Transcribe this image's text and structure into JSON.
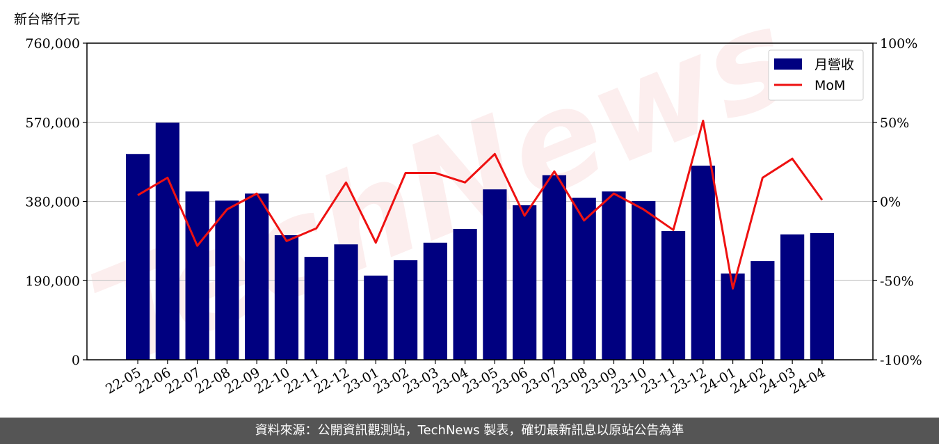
{
  "chart_data": {
    "type": "bar",
    "ylabel": "新台幣仟元",
    "watermark": "TechNews",
    "categories": [
      "22-05",
      "22-06",
      "22-07",
      "22-08",
      "22-09",
      "22-10",
      "22-11",
      "22-12",
      "23-01",
      "23-02",
      "23-03",
      "23-04",
      "23-05",
      "23-06",
      "23-07",
      "23-08",
      "23-09",
      "23-10",
      "23-11",
      "23-12",
      "24-01",
      "24-02",
      "24-03",
      "24-04"
    ],
    "series": [
      {
        "name": "月營收",
        "type": "bar",
        "color": "#000080",
        "values": [
          494000,
          569000,
          404000,
          382000,
          399000,
          299000,
          247000,
          277000,
          202000,
          239000,
          281000,
          314000,
          409000,
          371000,
          443000,
          389000,
          404000,
          381000,
          309000,
          466000,
          207000,
          237000,
          301000,
          304000
        ]
      },
      {
        "name": "MoM",
        "type": "line",
        "color": "#ee1111",
        "axis": "y2",
        "values": [
          4,
          15,
          -28,
          -5,
          5,
          -25,
          -17,
          12,
          -26,
          18,
          18,
          12,
          30,
          -9,
          19,
          -12,
          5,
          -5,
          -18,
          51,
          -55,
          15,
          27,
          1
        ]
      }
    ],
    "ylim": [
      0,
      760000
    ],
    "yticks": [
      0,
      {
        "value": 190000,
        "label": "190,000"
      },
      {
        "value": 380000,
        "label": "380,000"
      },
      {
        "value": 570000,
        "label": "570,000"
      },
      {
        "value": 760000,
        "label": "760,000"
      }
    ],
    "y2lim": [
      -100,
      100
    ],
    "y2ticks": [
      {
        "value": -100,
        "label": "-100%"
      },
      {
        "value": -50,
        "label": "-50%"
      },
      {
        "value": 0,
        "label": "0%"
      },
      {
        "value": 50,
        "label": "50%"
      },
      {
        "value": 100,
        "label": "100%"
      }
    ],
    "grid": true,
    "legend": "upper right"
  },
  "footer": "資料來源：公開資訊觀測站，TechNews 製表，確切最新訊息以原站公告為準"
}
